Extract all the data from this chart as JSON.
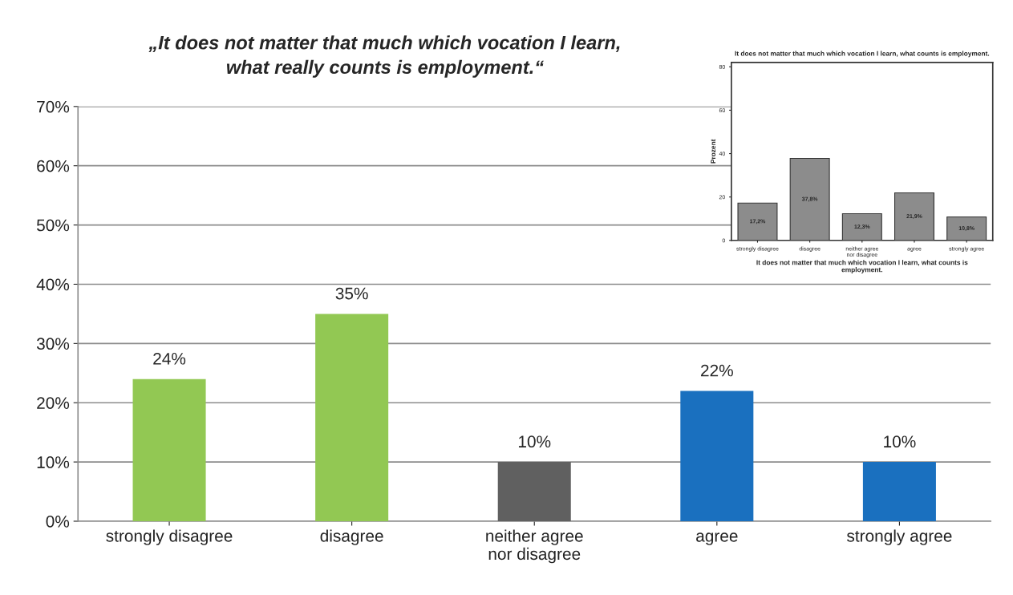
{
  "chart_data": [
    {
      "type": "bar",
      "title": "„It does not matter that much which vocation I learn, what really counts is employment.“",
      "categories": [
        "strongly disagree",
        "disagree",
        "neither agree nor disagree",
        "agree",
        "strongly agree"
      ],
      "values": [
        24,
        35,
        10,
        22,
        10
      ],
      "colors": [
        "#92c853",
        "#92c853",
        "#606060",
        "#1a70bf",
        "#1a70bf"
      ],
      "value_labels": [
        "24%",
        "35%",
        "10%",
        "22%",
        "10%"
      ],
      "ylim": [
        0,
        70
      ],
      "yticks": [
        {
          "value": 0,
          "label": "0%"
        },
        {
          "value": 10,
          "label": "10%"
        },
        {
          "value": 20,
          "label": "20%"
        },
        {
          "value": 30,
          "label": "30%"
        },
        {
          "value": 40,
          "label": "40%"
        },
        {
          "value": 50,
          "label": "50%"
        },
        {
          "value": 60,
          "label": "60%"
        },
        {
          "value": 70,
          "label": "70%"
        }
      ],
      "grid": "y",
      "legend": false
    },
    {
      "type": "bar",
      "title": "It does not matter that much which vocation I learn, what counts is employment.",
      "xlabel": "It does not matter that much which vocation I learn, what counts is employment.",
      "ylabel": "Prozent",
      "categories": [
        "strongly disagree",
        "disagree",
        "neither agree nor disagree",
        "agree",
        "strongly agree"
      ],
      "values": [
        17.2,
        37.8,
        12.3,
        21.9,
        10.8
      ],
      "color": "#8c8c8c",
      "value_labels": [
        "17,2%",
        "37,8%",
        "12,3%",
        "21,9%",
        "10,8%"
      ],
      "ylim": [
        0,
        82
      ],
      "yticks": [
        0,
        20,
        40,
        60,
        80
      ],
      "legend": false
    }
  ]
}
